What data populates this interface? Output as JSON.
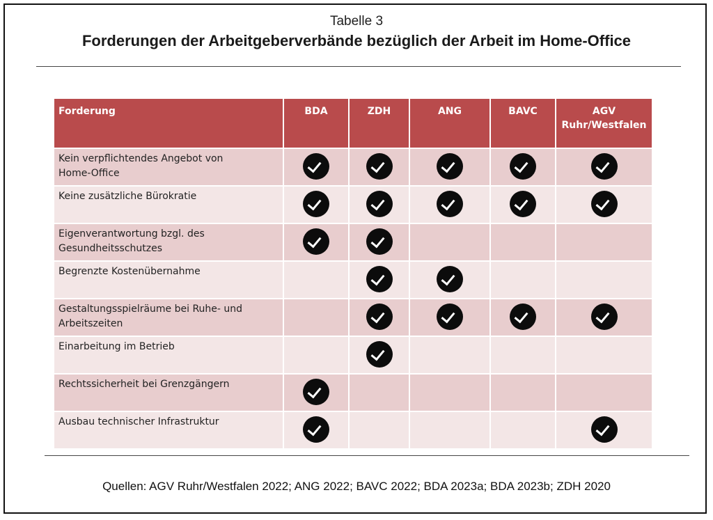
{
  "caption": "Tabelle 3",
  "title": "Forderungen der Arbeitgeberverbände bezüglich der Arbeit im Home-Office",
  "table": {
    "header": {
      "col0": "Forderung",
      "col1": "BDA",
      "col2": "ZDH",
      "col3": "ANG",
      "col4": "BAVC",
      "col5_line1": "AGV",
      "col5_line2": "Ruhr/Westfalen"
    },
    "check_icon": "check-circle-icon",
    "rows": [
      {
        "line1": "Kein verpflichtendes Angebot von",
        "line2": "Home-Office",
        "checks": [
          true,
          true,
          true,
          true,
          true
        ]
      },
      {
        "line1": "Keine zusätzliche Bürokratie",
        "line2": "",
        "checks": [
          true,
          true,
          true,
          true,
          true
        ]
      },
      {
        "line1": "Eigenverantwortung bzgl. des",
        "line2": "Gesundheitsschutzes",
        "checks": [
          true,
          true,
          false,
          false,
          false
        ]
      },
      {
        "line1": "Begrenzte Kostenübernahme",
        "line2": "",
        "checks": [
          false,
          true,
          true,
          false,
          false
        ]
      },
      {
        "line1": "Gestaltungsspielräume bei Ruhe- und",
        "line2": "Arbeitszeiten",
        "checks": [
          false,
          true,
          true,
          true,
          true
        ]
      },
      {
        "line1": "Einarbeitung im Betrieb",
        "line2": "",
        "checks": [
          false,
          true,
          false,
          false,
          false
        ]
      },
      {
        "line1": "Rechtssicherheit bei Grenzgängern",
        "line2": "",
        "checks": [
          true,
          false,
          false,
          false,
          false
        ]
      },
      {
        "line1": "Ausbau technischer Infrastruktur",
        "line2": "",
        "checks": [
          true,
          false,
          false,
          false,
          true
        ]
      }
    ],
    "colors": {
      "header": "#b94b4c",
      "row_dark": "#e8cdce",
      "row_light": "#f3e6e6",
      "check": "#0c0c0c"
    }
  },
  "sources": "Quellen: AGV Ruhr/Westfalen 2022; ANG 2022; BAVC 2022; BDA 2023a; BDA 2023b; ZDH 2020"
}
